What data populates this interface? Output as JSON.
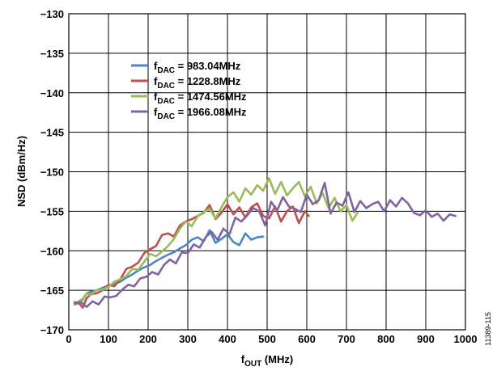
{
  "chart_data": {
    "type": "line",
    "xlabel": {
      "main": "f",
      "sub": "OUT",
      "unit": " (MHz)"
    },
    "ylabel": "NSD (dBm/Hz)",
    "xlim": [
      0,
      1000
    ],
    "ylim": [
      -170,
      -130
    ],
    "xticks": [
      0,
      100,
      200,
      300,
      400,
      500,
      600,
      700,
      800,
      900,
      1000
    ],
    "yticks": [
      -130,
      -135,
      -140,
      -145,
      -150,
      -155,
      -160,
      -165,
      -170
    ],
    "xtick_labels": [
      "0",
      "100",
      "200",
      "300",
      "400",
      "500",
      "600",
      "700",
      "800",
      "900",
      "1000"
    ],
    "ytick_labels": [
      "−130",
      "−135",
      "−140",
      "−145",
      "−150",
      "−155",
      "−160",
      "−165",
      "−170"
    ],
    "grid": true,
    "legend_position": "top-left",
    "figure_id": "11389-115",
    "series": [
      {
        "name": "983.04MHz",
        "label_main": "f",
        "label_sub": "DAC",
        "label_rest": " = 983.04MHz",
        "color": "#4a86c8",
        "x": [
          15,
          25,
          35,
          45,
          55,
          70,
          85,
          100,
          115,
          130,
          145,
          160,
          175,
          190,
          205,
          220,
          235,
          250,
          265,
          280,
          295,
          310,
          325,
          340,
          355,
          370,
          385,
          400,
          415,
          430,
          445,
          460,
          475,
          490
        ],
        "y": [
          -166.5,
          -166.6,
          -166.2,
          -165.4,
          -165.2,
          -165.0,
          -164.7,
          -164.4,
          -164.2,
          -163.9,
          -163.4,
          -163.0,
          -162.5,
          -162.1,
          -161.8,
          -161.3,
          -160.9,
          -160.5,
          -160.2,
          -159.7,
          -159.3,
          -158.6,
          -158.3,
          -158.8,
          -157.4,
          -159.0,
          -158.5,
          -157.9,
          -158.9,
          -159.3,
          -157.8,
          -158.6,
          -158.3,
          -158.2
        ]
      },
      {
        "name": "1228.8MHz",
        "label_main": "f",
        "label_sub": "DAC",
        "label_rest": " = 1228.8MHz",
        "color": "#c0504d",
        "x": [
          15,
          25,
          35,
          45,
          55,
          70,
          85,
          100,
          115,
          130,
          145,
          160,
          175,
          190,
          205,
          220,
          235,
          250,
          265,
          280,
          295,
          310,
          325,
          340,
          355,
          370,
          385,
          400,
          415,
          430,
          445,
          460,
          475,
          490,
          505,
          520,
          535,
          550,
          565,
          580,
          595,
          605
        ],
        "y": [
          -166.8,
          -166.6,
          -167.2,
          -166.0,
          -165.5,
          -165.4,
          -165.0,
          -164.3,
          -164.5,
          -163.6,
          -162.3,
          -162.0,
          -161.5,
          -160.3,
          -159.8,
          -159.4,
          -158.0,
          -157.8,
          -158.2,
          -156.8,
          -156.3,
          -156.0,
          -155.6,
          -155.2,
          -154.2,
          -156.0,
          -155.2,
          -154.1,
          -155.4,
          -154.5,
          -155.8,
          -154.5,
          -154.0,
          -155.6,
          -155.9,
          -154.4,
          -156.3,
          -155.0,
          -154.4,
          -156.5,
          -155.0,
          -155.6
        ]
      },
      {
        "name": "1474.56MHz",
        "label_main": "f",
        "label_sub": "DAC",
        "label_rest": " = 1474.56MHz",
        "color": "#9bbb59",
        "x": [
          15,
          25,
          35,
          45,
          55,
          70,
          85,
          100,
          115,
          130,
          145,
          160,
          175,
          190,
          205,
          220,
          235,
          250,
          265,
          280,
          295,
          310,
          325,
          340,
          355,
          370,
          385,
          400,
          415,
          430,
          445,
          460,
          475,
          490,
          505,
          520,
          535,
          550,
          565,
          580,
          595,
          610,
          625,
          640,
          655,
          670,
          685,
          700,
          715,
          728
        ],
        "y": [
          -166.7,
          -166.4,
          -166.1,
          -165.4,
          -165.6,
          -165.0,
          -164.9,
          -164.6,
          -163.9,
          -163.6,
          -163.2,
          -162.3,
          -162.4,
          -161.4,
          -160.4,
          -160.7,
          -160.1,
          -159.4,
          -158.5,
          -157.2,
          -156.3,
          -156.9,
          -155.6,
          -155.1,
          -154.7,
          -155.9,
          -154.5,
          -153.2,
          -152.6,
          -153.8,
          -152.1,
          -152.9,
          -151.7,
          -152.4,
          -150.8,
          -152.8,
          -151.3,
          -153.0,
          -152.1,
          -151.3,
          -153.1,
          -151.9,
          -154.0,
          -152.7,
          -154.6,
          -153.3,
          -155.0,
          -154.2,
          -156.2,
          -155.2
        ]
      },
      {
        "name": "1966.08MHz",
        "label_main": "f",
        "label_sub": "DAC",
        "label_rest": " = 1966.08MHz",
        "color": "#8064a2",
        "x": [
          15,
          30,
          45,
          60,
          75,
          90,
          105,
          120,
          135,
          150,
          165,
          180,
          195,
          210,
          225,
          240,
          255,
          270,
          285,
          300,
          315,
          330,
          345,
          360,
          375,
          390,
          405,
          420,
          435,
          450,
          465,
          480,
          495,
          510,
          525,
          540,
          555,
          570,
          585,
          600,
          615,
          630,
          645,
          660,
          675,
          690,
          705,
          720,
          735,
          750,
          765,
          780,
          795,
          810,
          825,
          840,
          855,
          870,
          885,
          900,
          915,
          930,
          945,
          960,
          975
        ],
        "y": [
          -166.6,
          -166.5,
          -167.1,
          -166.4,
          -166.8,
          -165.8,
          -165.9,
          -165.7,
          -164.9,
          -164.3,
          -164.5,
          -163.5,
          -163.3,
          -162.7,
          -163.0,
          -161.8,
          -161.1,
          -161.6,
          -160.2,
          -160.3,
          -159.2,
          -159.6,
          -158.3,
          -157.6,
          -158.6,
          -157.2,
          -157.9,
          -155.8,
          -156.3,
          -155.5,
          -154.6,
          -155.0,
          -156.8,
          -153.8,
          -154.9,
          -153.2,
          -154.4,
          -154.7,
          -155.1,
          -152.9,
          -154.1,
          -153.6,
          -151.4,
          -155.3,
          -153.9,
          -154.3,
          -152.6,
          -155.1,
          -153.7,
          -154.6,
          -154.1,
          -153.8,
          -155.0,
          -153.6,
          -154.4,
          -153.3,
          -154.0,
          -155.2,
          -155.5,
          -154.9,
          -155.7,
          -155.3,
          -156.2,
          -155.4,
          -155.6
        ]
      }
    ]
  }
}
